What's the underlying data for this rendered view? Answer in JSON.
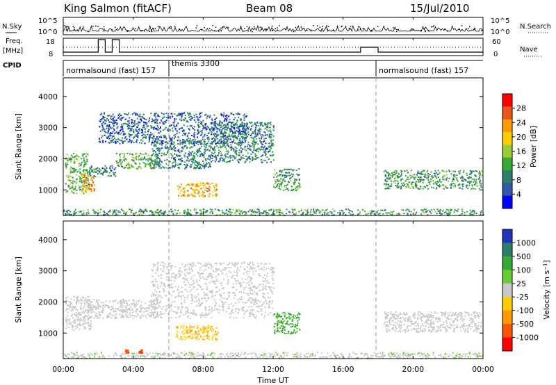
{
  "header": {
    "station": "King Salmon (fitACF)",
    "beam": "Beam 08",
    "date": "15/Jul/2010"
  },
  "noise_panel": {
    "left_label": "N.Sky",
    "right_label": "N.Search",
    "left_ticks": [
      "10^5",
      "10^0"
    ],
    "right_ticks": [
      "10^5",
      "10^0"
    ]
  },
  "freq_panel": {
    "left_label_top": "Freq.",
    "left_label_bottom": "[MHz]",
    "right_label": "Nave",
    "left_ticks": [
      "18",
      "8"
    ],
    "right_ticks": [
      "60",
      "0"
    ]
  },
  "cpid_panel": {
    "label": "CPID",
    "programs": [
      {
        "name": "normalsound (fast) 157",
        "start_hour": 0
      },
      {
        "name": "themis 3300",
        "start_hour": 6
      },
      {
        "name": "normalsound (fast) 157",
        "start_hour": 18
      }
    ]
  },
  "power_panel": {
    "ylabel": "Slant Range [km]",
    "yticks": [
      "4000",
      "3000",
      "2000",
      "1000"
    ],
    "colorbar_title": "Power [dB]",
    "colorbar_ticks": [
      "28",
      "24",
      "20",
      "16",
      "12",
      "8",
      "4"
    ],
    "colors": [
      "#ff0000",
      "#e8541a",
      "#ff9900",
      "#ffcc00",
      "#99cc33",
      "#33aa33",
      "#2a7f6a",
      "#3355aa",
      "#0000ff"
    ]
  },
  "velocity_panel": {
    "ylabel": "Slant Range [km]",
    "yticks": [
      "4000",
      "3000",
      "2000",
      "1000"
    ],
    "colorbar_title": "Velocity [m s⁻¹]",
    "colorbar_ticks": [
      "1000",
      "500",
      "100",
      "25",
      "-25",
      "-100",
      "-500",
      "-1000"
    ],
    "colors": [
      "#2233bb",
      "#2a7f6a",
      "#33aa33",
      "#66cc33",
      "#c8c8c8",
      "#ffcc00",
      "#ff9900",
      "#ff5500",
      "#ff0000"
    ]
  },
  "x_axis": {
    "label": "Time UT",
    "ticks": [
      "00:00",
      "04:00",
      "08:00",
      "12:00",
      "16:00",
      "20:00",
      "00:00"
    ]
  },
  "chart_data": [
    {
      "type": "heatmap",
      "title": "Power",
      "xlabel": "Time UT",
      "ylabel": "Slant Range [km]",
      "xlim": [
        0,
        24
      ],
      "ylim": [
        180,
        4600
      ],
      "value_range": [
        0,
        30
      ],
      "value_label": "Power [dB]",
      "blobs": [
        {
          "t": [
            0.1,
            1.4
          ],
          "r": [
            900,
            2200
          ],
          "value": 12
        },
        {
          "t": [
            1.0,
            1.8
          ],
          "r": [
            900,
            1500
          ],
          "value": 22
        },
        {
          "t": [
            1.4,
            3.0
          ],
          "r": [
            1450,
            1800
          ],
          "value": 8
        },
        {
          "t": [
            3.0,
            5.4
          ],
          "r": [
            1700,
            2200
          ],
          "value": 12
        },
        {
          "t": [
            5.0,
            8.5
          ],
          "r": [
            1700,
            2600
          ],
          "value": 8
        },
        {
          "t": [
            6.5,
            8.8
          ],
          "r": [
            800,
            1250
          ],
          "value": 20
        },
        {
          "t": [
            8.5,
            12.0
          ],
          "r": [
            1900,
            3200
          ],
          "value": 8
        },
        {
          "t": [
            2.0,
            10.5
          ],
          "r": [
            2500,
            3500
          ],
          "value": 6
        },
        {
          "t": [
            12.0,
            13.5
          ],
          "r": [
            1000,
            1700
          ],
          "value": 10
        },
        {
          "t": [
            18.3,
            23.9
          ],
          "r": [
            1050,
            1650
          ],
          "value": 10
        },
        {
          "t": [
            0.0,
            24.0
          ],
          "r": [
            200,
            400
          ],
          "value": 10
        }
      ]
    },
    {
      "type": "heatmap",
      "title": "Velocity",
      "xlabel": "Time UT",
      "ylabel": "Slant Range [km]",
      "xlim": [
        0,
        24
      ],
      "ylim": [
        180,
        4600
      ],
      "value_range": [
        -1000,
        1000
      ],
      "value_label": "Velocity [m s⁻¹]",
      "blobs": [
        {
          "t": [
            0.1,
            1.6
          ],
          "r": [
            1100,
            2200
          ],
          "value": 0
        },
        {
          "t": [
            1.4,
            5.4
          ],
          "r": [
            1500,
            2100
          ],
          "value": 0
        },
        {
          "t": [
            5.0,
            12.0
          ],
          "r": [
            1500,
            3300
          ],
          "value": 0
        },
        {
          "t": [
            6.4,
            8.8
          ],
          "r": [
            800,
            1250
          ],
          "value": -300
        },
        {
          "t": [
            12.0,
            13.5
          ],
          "r": [
            1000,
            1700
          ],
          "value": 400
        },
        {
          "t": [
            18.3,
            23.9
          ],
          "r": [
            1050,
            1700
          ],
          "value": 0
        },
        {
          "t": [
            0.0,
            24.0
          ],
          "r": [
            200,
            400
          ],
          "value": 50
        },
        {
          "t": [
            3.5,
            3.7
          ],
          "r": [
            380,
            480
          ],
          "value": -700
        },
        {
          "t": [
            4.3,
            4.5
          ],
          "r": [
            380,
            480
          ],
          "value": -700
        }
      ]
    }
  ]
}
